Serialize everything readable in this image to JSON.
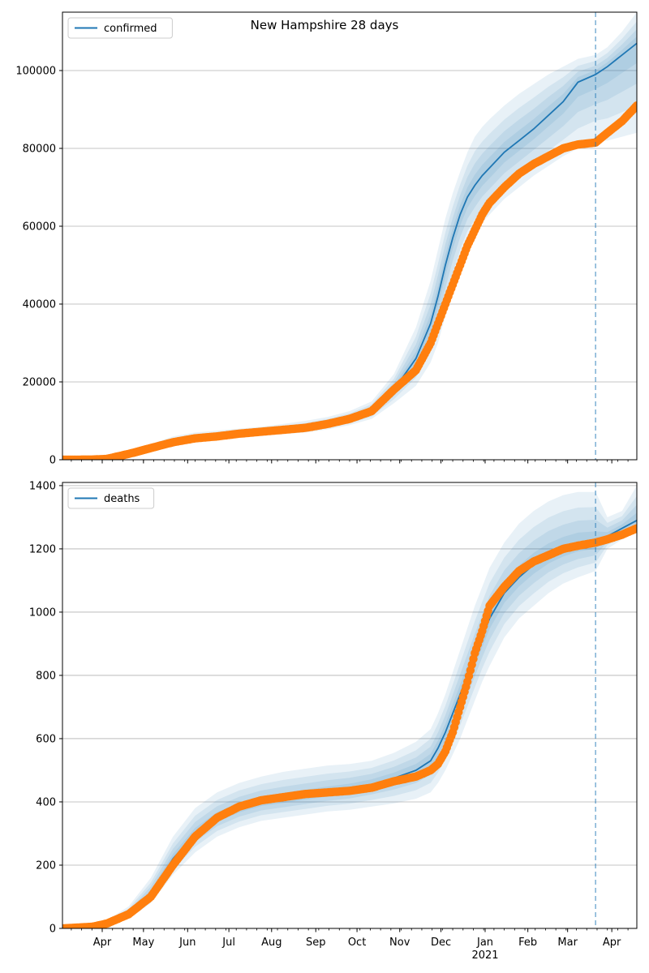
{
  "title": "New Hampshire 28 days",
  "colors": {
    "model": "#1f77b4",
    "observed": "#ff7f0e",
    "band": "#1f77b4",
    "grid": "#b0b0b0",
    "vline": "#1f77b4"
  },
  "chart_data": [
    {
      "type": "line",
      "legend": [
        "confirmed"
      ],
      "legend_position": "top-left",
      "grid": "horizontal",
      "xlim": [
        0,
        390
      ],
      "ylim": [
        0,
        115000
      ],
      "yticks": [
        0,
        20000,
        40000,
        60000,
        80000,
        100000
      ],
      "ytick_labels": [
        "0",
        "20000",
        "40000",
        "60000",
        "80000",
        "100000"
      ],
      "forecast_start_day": 362,
      "model": {
        "x": [
          0,
          20,
          30,
          45,
          60,
          75,
          90,
          105,
          120,
          135,
          150,
          165,
          180,
          195,
          210,
          225,
          240,
          250,
          255,
          260,
          265,
          270,
          275,
          280,
          285,
          290,
          300,
          310,
          320,
          330,
          340,
          350,
          362,
          370,
          380,
          390
        ],
        "y": [
          0,
          50,
          200,
          1500,
          3000,
          4500,
          5500,
          6000,
          6700,
          7200,
          7700,
          8200,
          9200,
          10500,
          12500,
          18000,
          26000,
          35000,
          42000,
          50000,
          57000,
          63000,
          67500,
          70500,
          73000,
          75000,
          79000,
          82000,
          85000,
          88500,
          92000,
          97000,
          99000,
          101000,
          104000,
          107000
        ]
      },
      "band_outer": {
        "lower": [
          0,
          30,
          150,
          1200,
          2500,
          3800,
          4600,
          5100,
          5700,
          6200,
          6600,
          7000,
          7800,
          8900,
          10500,
          14500,
          19000,
          25000,
          30000,
          37000,
          44000,
          50000,
          55000,
          58000,
          61000,
          63000,
          67000,
          70000,
          73000,
          75500,
          78000,
          80000,
          82000,
          82000,
          83000,
          84000
        ],
        "upper": [
          0,
          80,
          300,
          2000,
          4000,
          6000,
          7000,
          7500,
          8000,
          8500,
          9200,
          10000,
          11000,
          12500,
          15000,
          22000,
          34000,
          46000,
          54000,
          62000,
          68500,
          74000,
          79000,
          83000,
          85500,
          87500,
          91000,
          94000,
          96500,
          99000,
          101000,
          103000,
          104000,
          106000,
          110000,
          115000
        ]
      },
      "observed": {
        "x": [
          0,
          20,
          30,
          45,
          60,
          75,
          90,
          105,
          120,
          135,
          150,
          165,
          180,
          195,
          210,
          225,
          240,
          250,
          255,
          260,
          265,
          270,
          275,
          280,
          285,
          290,
          300,
          310,
          320,
          330,
          340,
          350,
          362,
          370,
          380,
          390
        ],
        "y": [
          0,
          50,
          200,
          1500,
          3000,
          4500,
          5500,
          6000,
          6700,
          7200,
          7700,
          8200,
          9200,
          10500,
          12500,
          18000,
          23000,
          30000,
          35000,
          40000,
          45000,
          50000,
          55000,
          59000,
          63000,
          66000,
          70000,
          73500,
          76000,
          78000,
          80000,
          81000,
          81500,
          84000,
          87000,
          91000
        ]
      }
    },
    {
      "type": "line",
      "legend": [
        "deaths"
      ],
      "legend_position": "top-left",
      "grid": "horizontal",
      "xlim": [
        0,
        390
      ],
      "ylim": [
        0,
        1410
      ],
      "yticks": [
        0,
        200,
        400,
        600,
        800,
        1000,
        1200,
        1400
      ],
      "ytick_labels": [
        "0",
        "200",
        "400",
        "600",
        "800",
        "1000",
        "1200",
        "1400"
      ],
      "forecast_start_day": 362,
      "xtick_labels": [
        "Apr",
        "May",
        "Jun",
        "Jul",
        "Aug",
        "Sep",
        "Oct",
        "Nov",
        "Dec",
        "Jan",
        "Feb",
        "Mar",
        "Apr"
      ],
      "xtick_days": [
        27,
        55,
        85,
        113,
        142,
        172,
        200,
        229,
        257,
        287,
        316,
        343,
        373
      ],
      "year_label": "2021",
      "model": {
        "x": [
          0,
          20,
          30,
          45,
          60,
          75,
          90,
          105,
          120,
          135,
          150,
          165,
          180,
          195,
          210,
          225,
          240,
          250,
          255,
          260,
          265,
          270,
          275,
          280,
          285,
          290,
          300,
          310,
          320,
          330,
          340,
          350,
          362,
          370,
          380,
          390
        ],
        "y": [
          0,
          5,
          15,
          45,
          110,
          220,
          300,
          350,
          380,
          400,
          410,
          420,
          430,
          440,
          455,
          475,
          500,
          530,
          570,
          620,
          680,
          740,
          800,
          860,
          920,
          980,
          1060,
          1110,
          1150,
          1180,
          1200,
          1215,
          1220,
          1240,
          1265,
          1290
        ]
      },
      "band_outer": {
        "lower": [
          0,
          2,
          8,
          30,
          80,
          170,
          240,
          290,
          320,
          340,
          350,
          360,
          370,
          375,
          385,
          395,
          410,
          430,
          460,
          500,
          550,
          600,
          660,
          720,
          780,
          830,
          920,
          980,
          1020,
          1060,
          1090,
          1110,
          1130,
          1200,
          1230,
          1255
        ],
        "upper": [
          0,
          8,
          25,
          70,
          160,
          290,
          380,
          430,
          460,
          480,
          495,
          505,
          515,
          520,
          530,
          555,
          590,
          630,
          680,
          740,
          810,
          880,
          950,
          1020,
          1080,
          1140,
          1220,
          1280,
          1320,
          1350,
          1370,
          1380,
          1380,
          1300,
          1320,
          1400
        ]
      },
      "observed": {
        "x": [
          0,
          20,
          30,
          45,
          60,
          75,
          90,
          105,
          120,
          135,
          150,
          165,
          180,
          195,
          210,
          225,
          240,
          250,
          255,
          260,
          265,
          270,
          275,
          280,
          285,
          290,
          300,
          310,
          320,
          330,
          340,
          350,
          362,
          370,
          380,
          390
        ],
        "y": [
          0,
          5,
          15,
          45,
          100,
          200,
          290,
          350,
          385,
          405,
          415,
          425,
          430,
          435,
          445,
          465,
          480,
          500,
          520,
          560,
          620,
          700,
          780,
          870,
          940,
          1020,
          1080,
          1130,
          1160,
          1180,
          1200,
          1210,
          1220,
          1230,
          1245,
          1265
        ]
      }
    }
  ]
}
